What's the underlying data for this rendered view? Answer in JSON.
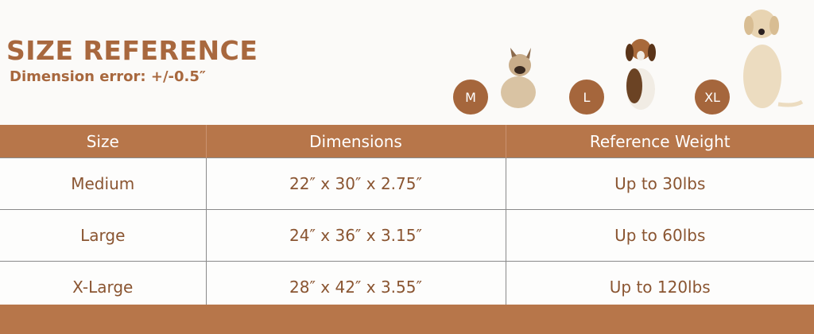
{
  "header": {
    "title": "SIZE REFERENCE",
    "subtitle": "Dimension error: +/-0.5″"
  },
  "badges": [
    {
      "label": "M"
    },
    {
      "label": "L"
    },
    {
      "label": "XL"
    }
  ],
  "table": {
    "columns": [
      "Size",
      "Dimensions",
      "Reference Weight"
    ],
    "rows": [
      [
        "Medium",
        "22″ x 30″ x 2.75″",
        "Up to 30lbs"
      ],
      [
        "Large",
        "24″ x 36″ x 3.15″",
        "Up to 60lbs"
      ],
      [
        "X-Large",
        "28″ x 42″ x 3.55″",
        "Up to 120lbs"
      ]
    ]
  },
  "colors": {
    "accent": "#b7764a",
    "text": "#8a5531",
    "badge": "#a5663c"
  }
}
